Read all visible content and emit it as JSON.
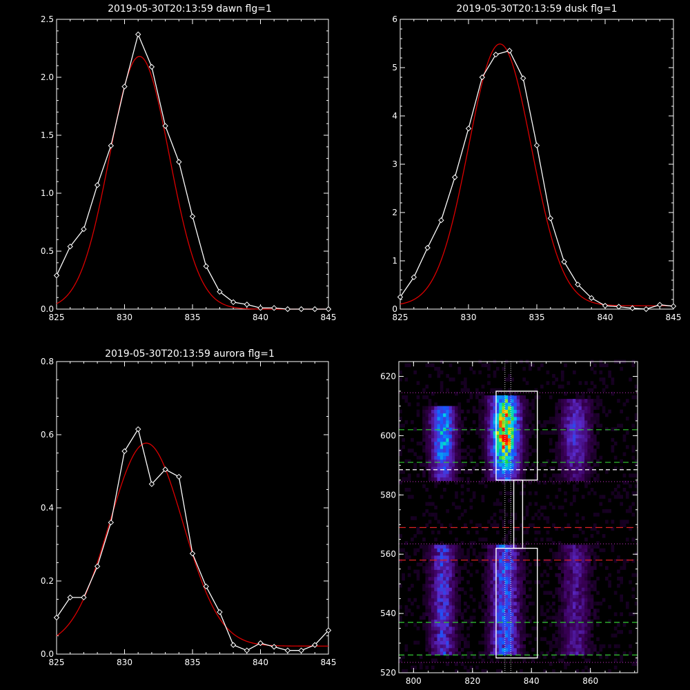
{
  "colors": {
    "background": "#000000",
    "axes": "#ffffff",
    "data": "#ffffff",
    "fit": "#dd0000",
    "green_line": "#33cc33",
    "red_line": "#dd2222",
    "magenta_dotted": "#cc33cc"
  },
  "chart_data": [
    {
      "type": "line",
      "title": "2019-05-30T20:13:59 dawn flg=1",
      "xlim": [
        825,
        845
      ],
      "ylim": [
        0,
        2.5
      ],
      "xticks": [
        825,
        830,
        835,
        840,
        845
      ],
      "xtick_labels": [
        "825",
        "830",
        "835",
        "840",
        "845"
      ],
      "yticks": [
        0,
        0.5,
        1,
        1.5,
        2,
        2.5
      ],
      "ytick_labels": [
        "0.0",
        "0.5",
        "1.0",
        "1.5",
        "2.0",
        "2.5"
      ],
      "series": [
        {
          "style": "data",
          "x": [
            825,
            826,
            827,
            828,
            829,
            830,
            831,
            832,
            833,
            834,
            835,
            836,
            837,
            838,
            839,
            840,
            841,
            842,
            843,
            844,
            845
          ],
          "y": [
            0.29,
            0.54,
            0.69,
            1.07,
            1.41,
            1.92,
            2.37,
            2.09,
            1.58,
            1.27,
            0.8,
            0.37,
            0.15,
            0.06,
            0.04,
            0.01,
            0.01,
            0.0,
            0.0,
            0.0,
            0.0
          ]
        },
        {
          "style": "fit",
          "model": "gaussian",
          "amplitude": 2.18,
          "center": 831.1,
          "sigma": 2.2,
          "offset": 0.0
        }
      ]
    },
    {
      "type": "line",
      "title": "2019-05-30T20:13:59 dusk flg=1",
      "xlim": [
        825,
        845
      ],
      "ylim": [
        0,
        6
      ],
      "xticks": [
        825,
        830,
        835,
        840,
        845
      ],
      "xtick_labels": [
        "825",
        "830",
        "835",
        "840",
        "845"
      ],
      "yticks": [
        0,
        1,
        2,
        3,
        4,
        5,
        6
      ],
      "ytick_labels": [
        "0",
        "1",
        "2",
        "3",
        "4",
        "5",
        "6"
      ],
      "series": [
        {
          "style": "data",
          "x": [
            825,
            826,
            827,
            828,
            829,
            830,
            831,
            832,
            833,
            834,
            835,
            836,
            837,
            838,
            839,
            840,
            841,
            842,
            843,
            844,
            845
          ],
          "y": [
            0.25,
            0.66,
            1.27,
            1.84,
            2.73,
            3.74,
            4.8,
            5.27,
            5.35,
            4.78,
            3.39,
            1.88,
            0.98,
            0.51,
            0.23,
            0.07,
            0.05,
            0.02,
            0.0,
            0.09,
            0.06
          ]
        },
        {
          "style": "fit",
          "model": "gaussian",
          "amplitude": 5.42,
          "center": 832.3,
          "sigma": 2.3,
          "offset": 0.07
        }
      ]
    },
    {
      "type": "line",
      "title": "2019-05-30T20:13:59 aurora flg=1",
      "xlim": [
        825,
        845
      ],
      "ylim": [
        0,
        0.8
      ],
      "xticks": [
        825,
        830,
        835,
        840,
        845
      ],
      "xtick_labels": [
        "825",
        "830",
        "835",
        "840",
        "845"
      ],
      "yticks": [
        0,
        0.2,
        0.4,
        0.6,
        0.8
      ],
      "ytick_labels": [
        "0.0",
        "0.2",
        "0.4",
        "0.6",
        "0.8"
      ],
      "series": [
        {
          "style": "data",
          "x": [
            825,
            826,
            827,
            828,
            829,
            830,
            831,
            832,
            833,
            834,
            835,
            836,
            837,
            838,
            839,
            840,
            841,
            842,
            843,
            844,
            845
          ],
          "y": [
            0.1,
            0.155,
            0.155,
            0.24,
            0.36,
            0.555,
            0.615,
            0.465,
            0.505,
            0.485,
            0.275,
            0.185,
            0.115,
            0.025,
            0.01,
            0.03,
            0.02,
            0.01,
            0.01,
            0.025,
            0.065
          ]
        },
        {
          "style": "fit",
          "model": "gaussian",
          "amplitude": 0.555,
          "center": 831.6,
          "sigma": 2.7,
          "offset": 0.022
        }
      ]
    },
    {
      "type": "heatmap",
      "title": "",
      "xlim": [
        795,
        876
      ],
      "ylim": [
        520,
        625
      ],
      "xticks": [
        800,
        820,
        840,
        860
      ],
      "xtick_labels": [
        "800",
        "820",
        "840",
        "860"
      ],
      "yticks": [
        520,
        540,
        560,
        580,
        600,
        620
      ],
      "ytick_labels": [
        "520",
        "540",
        "560",
        "580",
        "600",
        "620"
      ],
      "emission_columns": [
        {
          "x_center": 810,
          "x_width": 6,
          "y_range": [
            584,
            610
          ],
          "peak": 0.6,
          "lower_y_range": [
            525,
            563
          ],
          "lower_peak": 0.4
        },
        {
          "x_center": 831,
          "x_width": 7,
          "y_range": [
            584,
            613
          ],
          "peak": 1.0,
          "lower_y_range": [
            525,
            563
          ],
          "lower_peak": 0.5
        },
        {
          "x_center": 855,
          "x_width": 7,
          "y_range": [
            584,
            612
          ],
          "peak": 0.35,
          "lower_y_range": [
            525,
            563
          ],
          "lower_peak": 0.25
        }
      ],
      "boxes": [
        {
          "x": [
            828,
            842
          ],
          "y": [
            585,
            615
          ]
        },
        {
          "x": [
            834,
            837
          ],
          "y": [
            562,
            585
          ]
        },
        {
          "x": [
            828,
            842
          ],
          "y": [
            525,
            562
          ]
        }
      ],
      "green_dashed_y": [
        602,
        591,
        537,
        526
      ],
      "red_dashed_y": [
        569,
        558
      ],
      "white_dashed_y": [
        588.5
      ],
      "magenta_dotted_y": [
        614.5,
        584.5,
        563.5,
        523.5
      ],
      "vertical_dotted_x": [
        831,
        833
      ]
    }
  ]
}
